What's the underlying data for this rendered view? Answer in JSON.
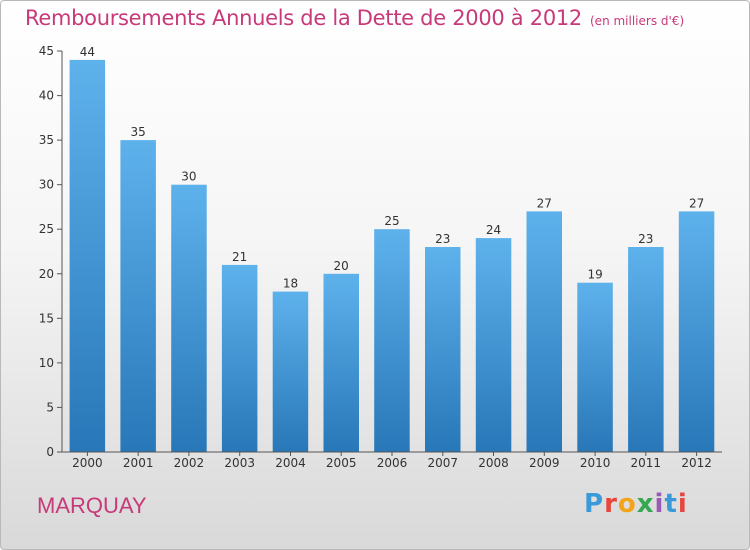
{
  "header": {
    "title": "Remboursements Annuels de la Dette de 2000 à 2012",
    "subtitle": "(en milliers d'€)"
  },
  "footer": {
    "city": "MARQUAY",
    "logo_letters": [
      "P",
      "r",
      "o",
      "x",
      "i",
      "t",
      "i"
    ],
    "logo_colors": [
      "#3a9ad9",
      "#e7463c",
      "#f2a51a",
      "#36a852",
      "#9b59b6",
      "#3a9ad9",
      "#e7463c"
    ]
  },
  "colors": {
    "accent": "#c8397a",
    "bar_light": "#5eb2ec",
    "bar_dark": "#2877b8"
  },
  "chart_data": {
    "type": "bar",
    "categories": [
      "2000",
      "2001",
      "2002",
      "2003",
      "2004",
      "2005",
      "2006",
      "2007",
      "2008",
      "2009",
      "2010",
      "2011",
      "2012"
    ],
    "values": [
      44,
      35,
      30,
      21,
      18,
      20,
      25,
      23,
      24,
      27,
      19,
      23,
      27
    ],
    "yticks": [
      "0",
      "5",
      "10",
      "15",
      "20",
      "25",
      "30",
      "35",
      "40",
      "45"
    ],
    "ylim": [
      0,
      45
    ],
    "grid": false,
    "legend": "none"
  }
}
